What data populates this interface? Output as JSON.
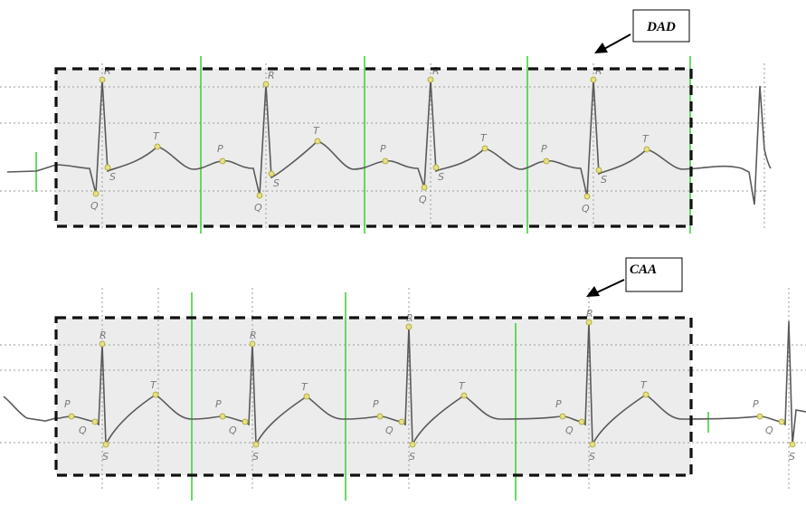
{
  "panels": [
    {
      "id": "top",
      "label": "DAD",
      "beats": [
        {
          "labels": [
            "R",
            "Q",
            "S",
            "T",
            "P"
          ]
        },
        {
          "labels": [
            "R",
            "Q",
            "S",
            "T",
            "P"
          ]
        },
        {
          "labels": [
            "R",
            "Q",
            "S",
            "T",
            "P"
          ]
        },
        {
          "labels": [
            "R",
            "Q",
            "S",
            "T",
            "P"
          ]
        }
      ]
    },
    {
      "id": "bottom",
      "label": "CAA",
      "beats": [
        {
          "labels": [
            "P",
            "Q",
            "R",
            "S",
            "T"
          ]
        },
        {
          "labels": [
            "P",
            "Q",
            "R",
            "S",
            "T"
          ]
        },
        {
          "labels": [
            "P",
            "Q",
            "R",
            "S",
            "T"
          ]
        },
        {
          "labels": [
            "P",
            "Q",
            "R",
            "S",
            "T"
          ]
        },
        {
          "labels": [
            "P",
            "Q",
            "S"
          ]
        }
      ]
    }
  ],
  "colors": {
    "trace": "#5a5a5a",
    "marker": "#e6e08a",
    "gridline_vertical": "#34d134",
    "dashed_box": "#111111",
    "panel_fill": "#ececec"
  }
}
